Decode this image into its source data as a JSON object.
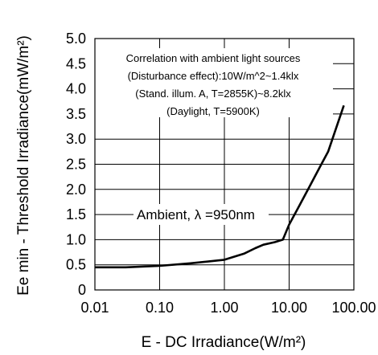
{
  "chart_data": {
    "type": "line",
    "title": "",
    "xlabel": "E - DC Irradiance(W/m²)",
    "ylabel": "Ee min - Threshold Irradiance(mW/m²)",
    "x_scale": "log",
    "xlim": [
      0.01,
      100
    ],
    "ylim": [
      0,
      5
    ],
    "x_ticks": [
      "0.01",
      "0.10",
      "1.00",
      "10.00",
      "100.00"
    ],
    "y_ticks": [
      "0",
      "0.5",
      "1.0",
      "1.5",
      "2.0",
      "2.5",
      "3.0",
      "3.5",
      "4.0",
      "4.5",
      "5.0"
    ],
    "grid": true,
    "series": [
      {
        "name": "Ambient, λ =950nm",
        "x": [
          0.01,
          0.03,
          0.1,
          0.3,
          1,
          2,
          3,
          4,
          6,
          8,
          10,
          15,
          20,
          30,
          40,
          70
        ],
        "y": [
          0.45,
          0.45,
          0.48,
          0.53,
          0.6,
          0.72,
          0.83,
          0.9,
          0.95,
          1.0,
          1.3,
          1.72,
          2.02,
          2.45,
          2.75,
          3.67
        ]
      }
    ],
    "annotation_lines": [
      "Correlation with ambient light sources",
      "(Disturbance effect):10W/m^2~1.4klx",
      "(Stand. illum. A, T=2855K)~8.2klx",
      "(Daylight, T=5900K)"
    ]
  }
}
